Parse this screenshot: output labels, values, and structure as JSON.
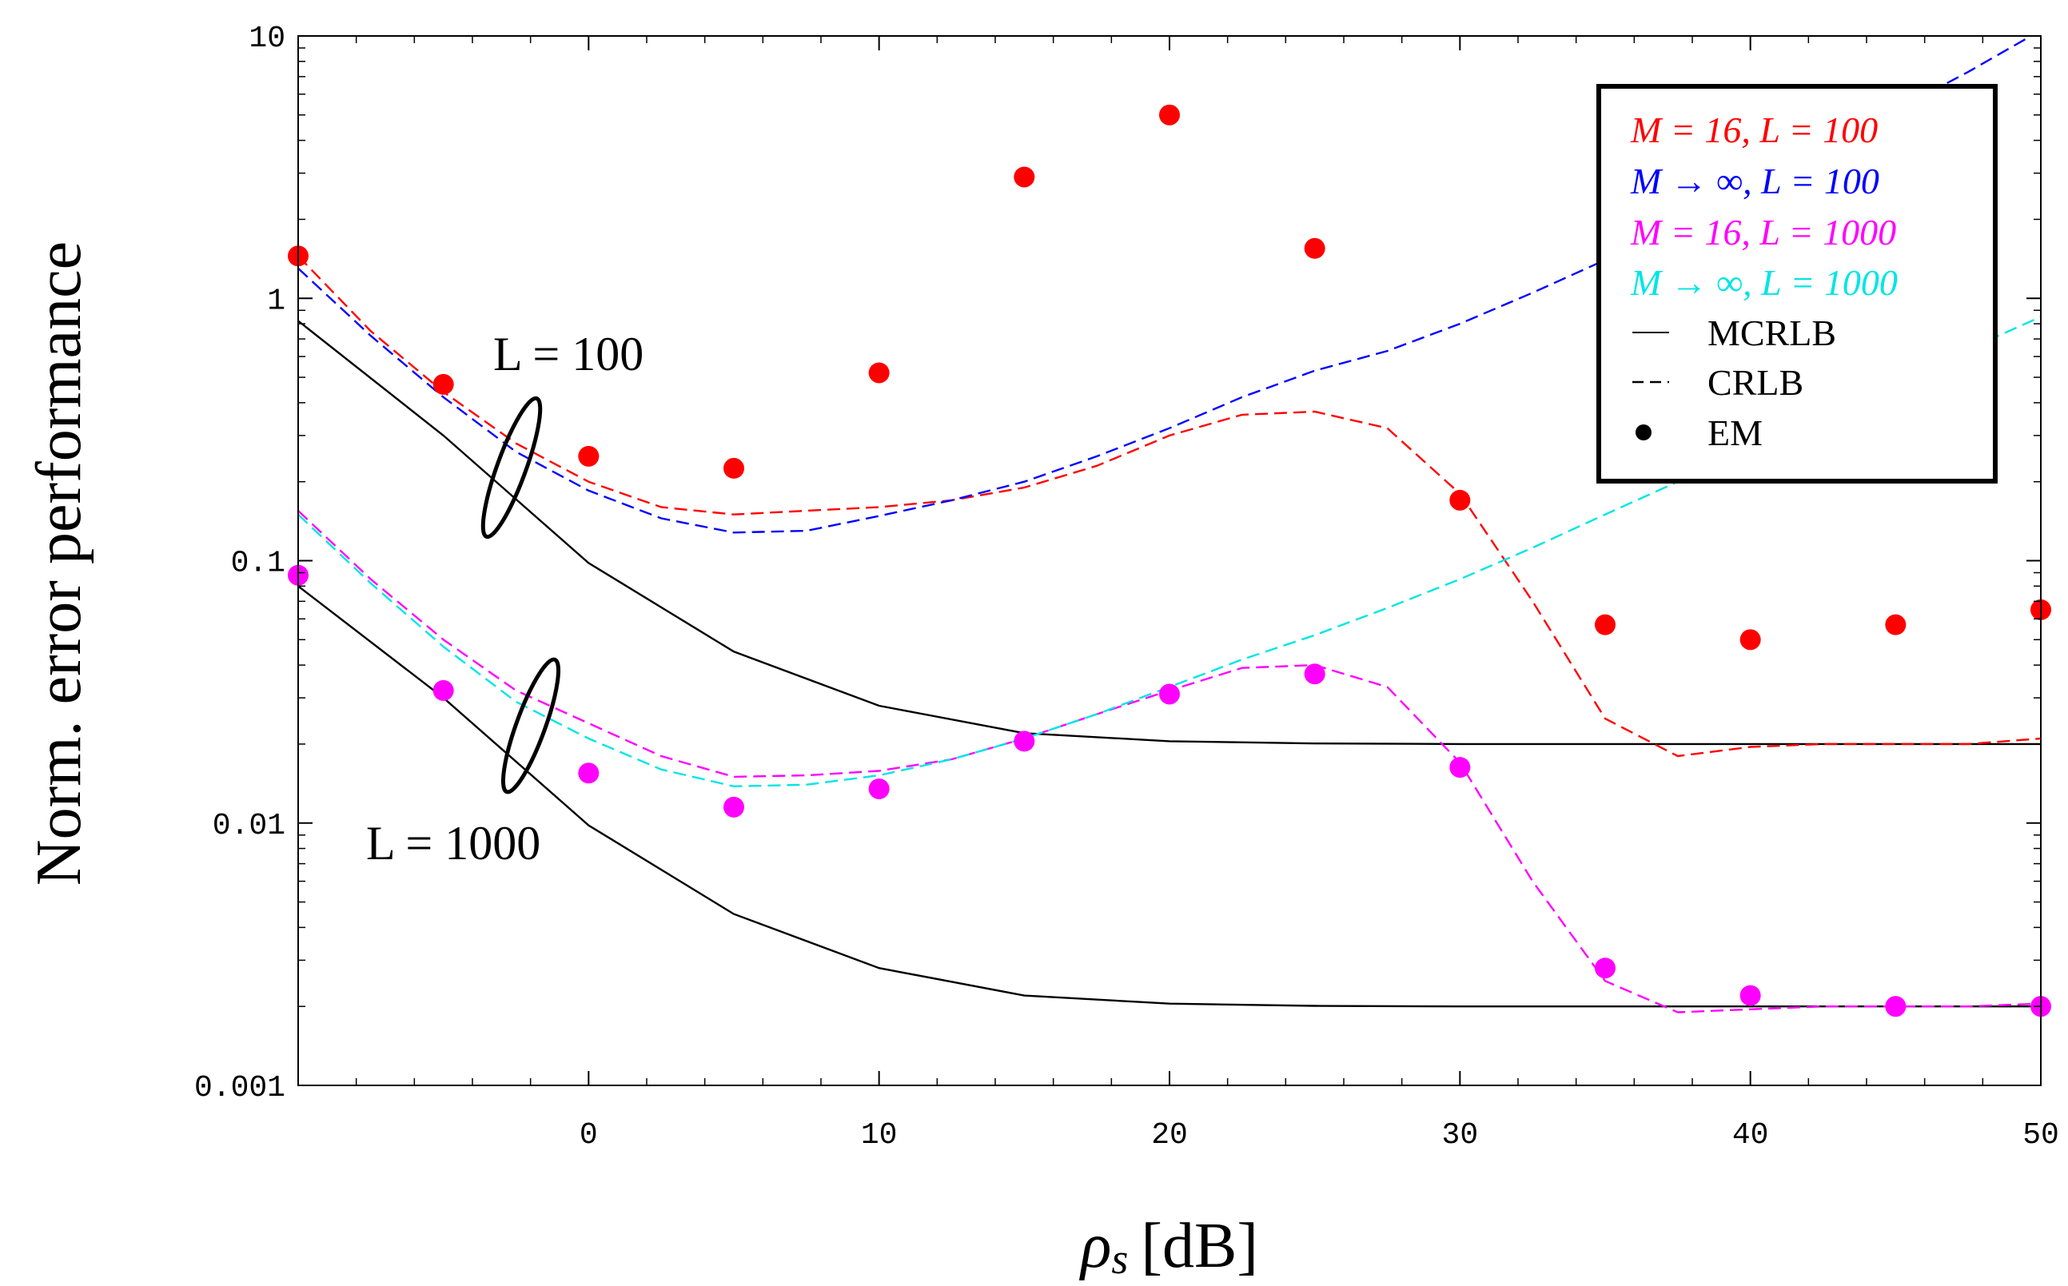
{
  "chart_data": {
    "type": "line",
    "title": "",
    "xlabel": "ρs [dB]",
    "xlabel_main": "ρ",
    "xlabel_sub": "s",
    "xlabel_unit": "[dB]",
    "ylabel": "Norm. error performance",
    "xlim": [
      -10,
      50
    ],
    "ylim": [
      0.001,
      10
    ],
    "yscale": "log",
    "grid": false,
    "legend_position": "top-right",
    "x_ticks": [
      0,
      10,
      20,
      30,
      40,
      50
    ],
    "x_tick_labels": [
      "0",
      "10",
      "20",
      "30",
      "40",
      "50"
    ],
    "y_ticks": [
      0.001,
      0.01,
      0.1,
      1,
      10
    ],
    "y_tick_labels": [
      "0.001",
      "0.01",
      "0.1",
      "1",
      "10"
    ],
    "colors": {
      "red": "#ff0000",
      "blue": "#0000ff",
      "magenta": "#ff00ff",
      "cyan": "#00e5e5",
      "black": "#000000"
    },
    "legend": [
      {
        "label": "M = 16, L = 100",
        "color": "#ff0000",
        "style": "text"
      },
      {
        "label": "M → ∞, L = 100",
        "color": "#0000ff",
        "style": "text"
      },
      {
        "label": "M = 16, L = 1000",
        "color": "#ff00ff",
        "style": "text"
      },
      {
        "label": "M → ∞, L = 1000",
        "color": "#00e5e5",
        "style": "text"
      },
      {
        "label": "MCRLB",
        "color": "#000000",
        "style": "solid"
      },
      {
        "label": "CRLB",
        "color": "#000000",
        "style": "dashed"
      },
      {
        "label": "EM",
        "color": "#000000",
        "style": "dot"
      }
    ],
    "annotations": [
      {
        "text": "L = 100",
        "x": -4.2,
        "y": 0.6
      },
      {
        "text": "L = 1000",
        "x": -4.2,
        "y": 0.0085
      }
    ],
    "series": [
      {
        "name": "MCRLB, L = 100",
        "color": "#000000",
        "style": "solid",
        "x": [
          -10,
          -5,
          0,
          5,
          10,
          15,
          20,
          25,
          30,
          35,
          40,
          45,
          50
        ],
        "y": [
          0.82,
          0.3,
          0.098,
          0.045,
          0.028,
          0.022,
          0.0205,
          0.0201,
          0.02,
          0.02,
          0.02,
          0.02,
          0.02
        ]
      },
      {
        "name": "MCRLB, L = 1000",
        "color": "#000000",
        "style": "solid",
        "x": [
          -10,
          -5,
          0,
          5,
          10,
          15,
          20,
          25,
          30,
          35,
          40,
          45,
          50
        ],
        "y": [
          0.08,
          0.03,
          0.0098,
          0.0045,
          0.0028,
          0.0022,
          0.00205,
          0.00201,
          0.002,
          0.002,
          0.002,
          0.002,
          0.002
        ]
      },
      {
        "name": "M = 16, L = 100 CRLB",
        "color": "#ff0000",
        "style": "dashed",
        "x": [
          -10,
          -7.5,
          -5,
          -2.5,
          0,
          2.5,
          5,
          7.5,
          10,
          12.5,
          15,
          17.5,
          20,
          22.5,
          25,
          27.5,
          30,
          32.5,
          35,
          37.5,
          40,
          42.5,
          45,
          47.5,
          50
        ],
        "y": [
          1.45,
          0.75,
          0.44,
          0.28,
          0.2,
          0.16,
          0.15,
          0.155,
          0.16,
          0.17,
          0.19,
          0.23,
          0.3,
          0.36,
          0.37,
          0.32,
          0.18,
          0.07,
          0.025,
          0.018,
          0.0195,
          0.02,
          0.02,
          0.02,
          0.021
        ]
      },
      {
        "name": "M → ∞, L = 100 CRLB",
        "color": "#0000ff",
        "style": "dashed",
        "x": [
          -10,
          -7.5,
          -5,
          -2.5,
          0,
          2.5,
          5,
          7.5,
          10,
          12.5,
          15,
          17.5,
          20,
          22.5,
          25,
          27.5,
          30,
          32.5,
          35,
          37.5,
          40,
          42.5,
          45,
          47.5,
          50
        ],
        "y": [
          1.3,
          0.72,
          0.42,
          0.26,
          0.185,
          0.145,
          0.128,
          0.13,
          0.148,
          0.17,
          0.2,
          0.25,
          0.32,
          0.42,
          0.53,
          0.63,
          0.8,
          1.05,
          1.4,
          1.9,
          2.6,
          3.7,
          5.2,
          7.3,
          10.5
        ]
      },
      {
        "name": "M = 16, L = 1000 CRLB",
        "color": "#ff00ff",
        "style": "dashed",
        "x": [
          -10,
          -7.5,
          -5,
          -2.5,
          0,
          2.5,
          5,
          7.5,
          10,
          12.5,
          15,
          17.5,
          20,
          22.5,
          25,
          27.5,
          30,
          32.5,
          35,
          37.5,
          40,
          42.5,
          45,
          47.5,
          50
        ],
        "y": [
          0.155,
          0.085,
          0.05,
          0.032,
          0.024,
          0.018,
          0.015,
          0.0152,
          0.0158,
          0.0175,
          0.021,
          0.026,
          0.032,
          0.039,
          0.04,
          0.033,
          0.017,
          0.006,
          0.0025,
          0.0019,
          0.00195,
          0.002,
          0.002,
          0.002,
          0.00205
        ]
      },
      {
        "name": "M → ∞, L = 1000 CRLB",
        "color": "#00e5e5",
        "style": "dashed",
        "x": [
          -10,
          -7.5,
          -5,
          -2.5,
          0,
          2.5,
          5,
          7.5,
          10,
          12.5,
          15,
          17.5,
          20,
          22.5,
          25,
          27.5,
          30,
          32.5,
          35,
          37.5,
          40,
          42.5,
          45,
          47.5,
          50
        ],
        "y": [
          0.15,
          0.082,
          0.047,
          0.029,
          0.021,
          0.016,
          0.0138,
          0.014,
          0.0152,
          0.0175,
          0.021,
          0.026,
          0.033,
          0.042,
          0.052,
          0.066,
          0.085,
          0.112,
          0.15,
          0.2,
          0.27,
          0.36,
          0.48,
          0.64,
          0.85
        ]
      }
    ],
    "scatter": [
      {
        "name": "EM, M = 16, L = 100",
        "color": "#ff0000",
        "x": [
          -10,
          -5,
          0,
          5,
          10,
          15,
          20,
          25,
          30,
          35,
          40,
          45,
          50
        ],
        "y": [
          1.45,
          0.47,
          0.25,
          0.225,
          0.52,
          2.9,
          5.0,
          1.55,
          0.17,
          0.057,
          0.05,
          0.057,
          0.065
        ]
      },
      {
        "name": "EM, M = 16, L = 1000",
        "color": "#ff00ff",
        "x": [
          -10,
          -5,
          0,
          5,
          10,
          15,
          20,
          25,
          30,
          35,
          40,
          45,
          50
        ],
        "y": [
          0.088,
          0.032,
          0.0155,
          0.0115,
          0.0135,
          0.0205,
          0.031,
          0.037,
          0.0163,
          0.0028,
          0.0022,
          0.002,
          0.002
        ]
      }
    ]
  }
}
